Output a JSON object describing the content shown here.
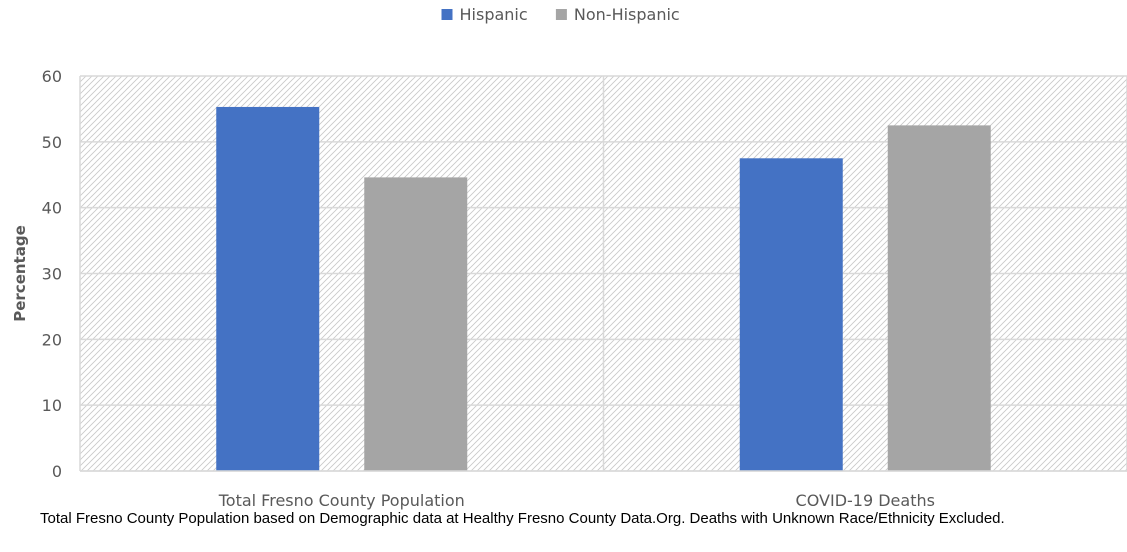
{
  "chart_data": {
    "type": "bar",
    "categories": [
      "Total Fresno County Population",
      "COVID-19 Deaths"
    ],
    "series": [
      {
        "name": "Hispanic",
        "values": [
          55.3,
          47.5
        ],
        "color": "#4472C4"
      },
      {
        "name": "Non-Hispanic",
        "values": [
          44.6,
          52.5
        ],
        "color": "#A5A5A5"
      }
    ],
    "title": "",
    "xlabel": "",
    "ylabel": "Percentage",
    "ylim": [
      0,
      60
    ],
    "yticks": [
      0,
      10,
      20,
      30,
      40,
      50,
      60
    ],
    "grid": true,
    "legend": "top-center",
    "plot_background": "diagonal-hatch"
  },
  "caption": "Total Fresno County Population based on Demographic data at Healthy Fresno County Data.Org. Deaths with Unknown Race/Ethnicity Excluded."
}
